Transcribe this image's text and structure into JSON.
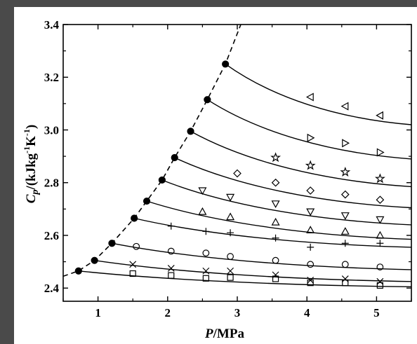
{
  "chart_data": {
    "type": "scatter",
    "title": "",
    "xlabel": {
      "italic": "P",
      "rest": "/MPa"
    },
    "ylabel": {
      "italic": "C",
      "sub": "p",
      "rest": "/(kJkg",
      "sup1": "-1",
      "mid": "K",
      "sup2": "-1",
      "end": ")"
    },
    "xlim": [
      0.5,
      5.5
    ],
    "ylim": [
      2.35,
      3.4
    ],
    "xticks": [
      1,
      2,
      3,
      4,
      5
    ],
    "yticks": [
      2.4,
      2.6,
      2.8,
      3.0,
      3.2,
      3.4
    ],
    "ytick_labels": [
      "2.4",
      "2.6",
      "2.8",
      "3.0",
      "3.2",
      "3.4"
    ],
    "grid": false,
    "saturation_curve": {
      "style": "dashed",
      "points": [
        [
          0.5,
          2.445
        ],
        [
          0.72,
          2.465
        ],
        [
          0.95,
          2.505
        ],
        [
          1.2,
          2.57
        ],
        [
          1.52,
          2.665
        ],
        [
          1.7,
          2.73
        ],
        [
          1.92,
          2.81
        ],
        [
          2.1,
          2.895
        ],
        [
          2.33,
          2.995
        ],
        [
          2.57,
          3.115
        ],
        [
          2.83,
          3.25
        ],
        [
          3.05,
          3.4
        ]
      ]
    },
    "isotherms": [
      {
        "marker": "square",
        "start": [
          0.72,
          2.465
        ],
        "end": [
          5.5,
          2.405
        ],
        "points": [
          [
            1.5,
            2.455
          ],
          [
            2.05,
            2.448
          ],
          [
            2.55,
            2.437
          ],
          [
            2.9,
            2.44
          ],
          [
            3.55,
            2.435
          ],
          [
            4.05,
            2.42
          ],
          [
            4.55,
            2.42
          ],
          [
            5.05,
            2.41
          ]
        ]
      },
      {
        "marker": "cross",
        "start": [
          0.95,
          2.505
        ],
        "end": [
          5.5,
          2.425
        ],
        "points": [
          [
            1.5,
            2.49
          ],
          [
            2.05,
            2.475
          ],
          [
            2.55,
            2.465
          ],
          [
            2.9,
            2.465
          ],
          [
            3.55,
            2.45
          ],
          [
            4.05,
            2.43
          ],
          [
            4.55,
            2.435
          ],
          [
            5.05,
            2.425
          ]
        ]
      },
      {
        "marker": "circle",
        "start": [
          1.2,
          2.57
        ],
        "end": [
          5.5,
          2.47
        ],
        "points": [
          [
            1.55,
            2.558
          ],
          [
            2.05,
            2.54
          ],
          [
            2.55,
            2.533
          ],
          [
            2.9,
            2.52
          ],
          [
            3.55,
            2.505
          ],
          [
            4.05,
            2.49
          ],
          [
            4.55,
            2.49
          ],
          [
            5.05,
            2.48
          ]
        ]
      },
      {
        "marker": "plus",
        "start": [
          1.52,
          2.665
        ],
        "end": [
          5.5,
          2.555
        ],
        "points": [
          [
            2.05,
            2.635
          ],
          [
            2.55,
            2.615
          ],
          [
            2.9,
            2.61
          ],
          [
            3.55,
            2.59
          ],
          [
            4.05,
            2.555
          ],
          [
            4.55,
            2.57
          ],
          [
            5.05,
            2.57
          ]
        ]
      },
      {
        "marker": "triangle-up",
        "start": [
          1.7,
          2.73
        ],
        "end": [
          5.5,
          2.585
        ],
        "points": [
          [
            2.5,
            2.69
          ],
          [
            2.9,
            2.67
          ],
          [
            3.55,
            2.65
          ],
          [
            4.05,
            2.62
          ],
          [
            4.55,
            2.615
          ],
          [
            5.05,
            2.6
          ]
        ]
      },
      {
        "marker": "triangle-down",
        "start": [
          1.92,
          2.81
        ],
        "end": [
          5.5,
          2.64
        ],
        "points": [
          [
            2.5,
            2.77
          ],
          [
            2.9,
            2.745
          ],
          [
            3.55,
            2.72
          ],
          [
            4.05,
            2.69
          ],
          [
            4.55,
            2.675
          ],
          [
            5.05,
            2.66
          ]
        ]
      },
      {
        "marker": "diamond",
        "start": [
          2.1,
          2.895
        ],
        "end": [
          5.5,
          2.705
        ],
        "points": [
          [
            3.0,
            2.835
          ],
          [
            3.55,
            2.8
          ],
          [
            4.05,
            2.77
          ],
          [
            4.55,
            2.755
          ],
          [
            5.05,
            2.735
          ]
        ]
      },
      {
        "marker": "star",
        "start": [
          2.33,
          2.995
        ],
        "end": [
          5.5,
          2.785
        ],
        "points": [
          [
            3.55,
            2.895
          ],
          [
            4.05,
            2.865
          ],
          [
            4.55,
            2.84
          ],
          [
            5.05,
            2.815
          ]
        ]
      },
      {
        "marker": "triangle-right",
        "start": [
          2.57,
          3.115
        ],
        "end": [
          5.5,
          2.89
        ],
        "points": [
          [
            4.05,
            2.97
          ],
          [
            4.55,
            2.95
          ],
          [
            5.05,
            2.915
          ]
        ]
      },
      {
        "marker": "triangle-left",
        "start": [
          2.83,
          3.25
        ],
        "end": [
          5.5,
          3.02
        ],
        "points": [
          [
            4.05,
            3.125
          ],
          [
            4.55,
            3.09
          ],
          [
            5.05,
            3.055
          ]
        ]
      }
    ]
  }
}
